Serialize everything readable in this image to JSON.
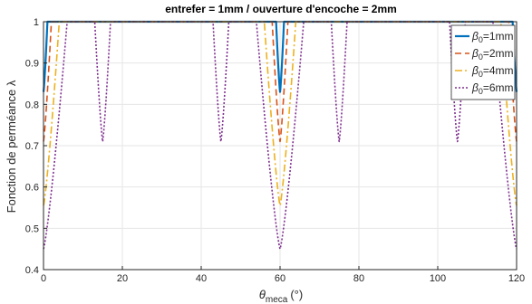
{
  "chart_data": {
    "type": "line",
    "title": "entrefer = 1mm / ouverture d'encoche = 2mm",
    "xlabel_symbol": "θ",
    "xlabel_sub": "meca",
    "xlabel_unit": "(°)",
    "ylabel": "Fonction de perméance λ",
    "xlim": [
      0,
      120
    ],
    "ylim": [
      0.4,
      1.0
    ],
    "xticks": [
      0,
      20,
      40,
      60,
      80,
      100,
      120
    ],
    "yticks": [
      0.4,
      0.5,
      0.6,
      0.7,
      0.8,
      0.9,
      1.0
    ],
    "xtick_labels": [
      "0",
      "20",
      "40",
      "60",
      "80",
      "100",
      "120"
    ],
    "ytick_labels": [
      "0.4",
      "0.5",
      "0.6",
      "0.7",
      "0.8",
      "0.9",
      "1"
    ],
    "grid": true,
    "legend_position": "top-right",
    "slots": [
      {
        "center": 0,
        "edge": "right"
      },
      {
        "center": 15,
        "edge": "both"
      },
      {
        "center": 45,
        "edge": "both"
      },
      {
        "center": 60,
        "edge": "both"
      },
      {
        "center": 75,
        "edge": "both"
      },
      {
        "center": 105,
        "edge": "both"
      },
      {
        "center": 120,
        "edge": "left"
      }
    ],
    "series": [
      {
        "name_symbol": "β",
        "name_sub": "0",
        "name_suffix": "=1mm",
        "color": "#0072BD",
        "dash": "solid",
        "width": 2.2,
        "dips": [
          {
            "center": 0,
            "half_width": 1.0,
            "min": 0.83
          },
          {
            "center": 60,
            "half_width": 1.0,
            "min": 0.83
          },
          {
            "center": 120,
            "half_width": 1.0,
            "min": 0.83
          }
        ]
      },
      {
        "name_symbol": "β",
        "name_sub": "0",
        "name_suffix": "=2mm",
        "color": "#D95319",
        "dash": "7,4",
        "width": 1.6,
        "dips": [
          {
            "center": 0,
            "half_width": 2.0,
            "min": 0.71
          },
          {
            "center": 60,
            "half_width": 2.0,
            "min": 0.71
          },
          {
            "center": 120,
            "half_width": 2.0,
            "min": 0.71
          }
        ]
      },
      {
        "name_symbol": "β",
        "name_sub": "0",
        "name_suffix": "=4mm",
        "color": "#EDB120",
        "dash": "8,3,2,3",
        "width": 1.6,
        "dips": [
          {
            "center": 0,
            "half_width": 4.0,
            "min": 0.555
          },
          {
            "center": 60,
            "half_width": 4.0,
            "min": 0.555
          },
          {
            "center": 120,
            "half_width": 4.0,
            "min": 0.555
          }
        ]
      },
      {
        "name_symbol": "β",
        "name_sub": "0",
        "name_suffix": "=6mm",
        "color": "#7E2F8E",
        "dash": "2,2",
        "width": 1.6,
        "dips": [
          {
            "center": 0,
            "half_width": 6.0,
            "min": 0.45
          },
          {
            "center": 15,
            "half_width": 2.0,
            "min": 0.71
          },
          {
            "center": 45,
            "half_width": 2.0,
            "min": 0.71
          },
          {
            "center": 60,
            "half_width": 6.0,
            "min": 0.45
          },
          {
            "center": 75,
            "half_width": 2.0,
            "min": 0.71
          },
          {
            "center": 105,
            "half_width": 2.0,
            "min": 0.71
          },
          {
            "center": 120,
            "half_width": 6.0,
            "min": 0.45
          }
        ]
      }
    ]
  }
}
